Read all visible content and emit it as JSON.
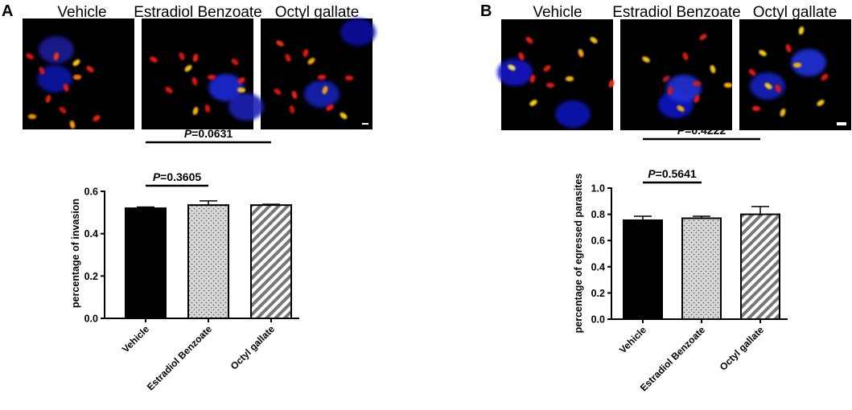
{
  "panels": [
    {
      "letter": "A",
      "micro_labels": [
        "Vehicle",
        "Estradiol Benzoate",
        "Octyl gallate"
      ],
      "micrographs": [
        {
          "name": "Vehicle",
          "nuclei": [
            [
              70,
              62,
              "#1a1f9a"
            ],
            [
              68,
              98,
              "#0d13a8"
            ]
          ],
          "parasites": [
            [
              37,
              70,
              "#e01010"
            ],
            [
              52,
              88,
              "#d01812"
            ],
            [
              70,
              70,
              "#e23a12"
            ],
            [
              95,
              78,
              "#f6c511"
            ],
            [
              96,
              96,
              "#f07a10"
            ],
            [
              112,
              86,
              "#e41c14"
            ],
            [
              82,
              109,
              "#e21813"
            ],
            [
              60,
              123,
              "#d8200f"
            ],
            [
              120,
              147,
              "#e62010"
            ],
            [
              40,
              145,
              "#e88d10"
            ],
            [
              78,
              137,
              "#c7140e"
            ],
            [
              90,
              155,
              "#ee9a12"
            ]
          ]
        },
        {
          "name": "Estradiol Benzoate",
          "nuclei": [
            [
              281,
              109,
              "#1f2ad8"
            ],
            [
              306,
              133,
              "#1c22b5"
            ]
          ],
          "parasites": [
            [
              191,
              74,
              "#e31512"
            ],
            [
              226,
              70,
              "#d41512"
            ],
            [
              243,
              72,
              "#e32013"
            ],
            [
              234,
              85,
              "#f1c012"
            ],
            [
              263,
              96,
              "#e01912"
            ],
            [
              210,
              112,
              "#e31611"
            ],
            [
              242,
              101,
              "#d81510"
            ],
            [
              243,
              138,
              "#f0b010"
            ],
            [
              300,
              100,
              "#e11a12"
            ],
            [
              300,
              112,
              "#f5bb12"
            ],
            [
              292,
              77,
              "#d21511"
            ],
            [
              258,
              135,
              "#d41511"
            ]
          ]
        },
        {
          "name": "Octyl gallate",
          "nuclei": [
            [
              400,
              117,
              "#1622b4"
            ],
            [
              445,
              40,
              "#0a10a0"
            ]
          ],
          "parasites": [
            [
              348,
              54,
              "#e23611"
            ],
            [
              358,
              72,
              "#d81612"
            ],
            [
              380,
              66,
              "#e61512"
            ],
            [
              387,
              76,
              "#f4a311"
            ],
            [
              400,
              96,
              "#e21712"
            ],
            [
              345,
              114,
              "#d01210"
            ],
            [
              366,
              118,
              "#e42012"
            ],
            [
              404,
              112,
              "#f0a010"
            ],
            [
              410,
              134,
              "#ed1a12"
            ],
            [
              434,
              97,
              "#e21411"
            ],
            [
              427,
              144,
              "#f1c712"
            ],
            [
              363,
              136,
              "#c3130e"
            ]
          ]
        }
      ],
      "chart_data": {
        "type": "bar",
        "categories": [
          "Vehicle",
          "Estradiol Benzoate",
          "Octyl gallate"
        ],
        "values": [
          0.52,
          0.535,
          0.535
        ],
        "errors": [
          0.006,
          0.02,
          0.004
        ],
        "fill_patterns": [
          "solid-black",
          "light-gray-dots",
          "gray-diagonal-stripes"
        ],
        "title": "",
        "xlabel": "",
        "ylabel": "percentage of invasion",
        "ylim": [
          0.0,
          0.6
        ],
        "yticks": [
          0.0,
          0.2,
          0.4,
          0.6
        ],
        "ytick_labels": [
          "0.0",
          "0.2",
          "0.4",
          "0.6"
        ],
        "significance": [
          {
            "from": "Vehicle",
            "to": "Estradiol Benzoate",
            "p_label": "P",
            "p_value": "=0.3605"
          },
          {
            "from": "Vehicle",
            "to": "Octyl gallate",
            "p_label": "P",
            "p_value": "=0.0631"
          }
        ]
      }
    },
    {
      "letter": "B",
      "micro_labels": [
        "Vehicle",
        "Estradiol Benzoate",
        "Octyl gallate"
      ],
      "micrographs": [
        {
          "name": "Vehicle",
          "nuclei": [
            [
              640,
              90,
              "#1517c8"
            ],
            [
              712,
              142,
              "#1118b9"
            ]
          ],
          "parasites": [
            [
              636,
              84,
              "#f6d85c"
            ],
            [
              648,
              70,
              "#e41e17"
            ],
            [
              662,
              98,
              "#e41a16"
            ],
            [
              680,
              85,
              "#d81a14"
            ],
            [
              708,
              98,
              "#f2b816"
            ],
            [
              738,
              50,
              "#f4c411"
            ],
            [
              722,
              66,
              "#f4a511"
            ],
            [
              760,
              104,
              "#e42a1a"
            ],
            [
              663,
              128,
              "#f5ce14"
            ],
            [
              684,
              106,
              "#d11a13"
            ],
            [
              658,
              50,
              "#e61f16"
            ]
          ]
        },
        {
          "name": "Estradiol Benzoate",
          "nuclei": [
            [
              840,
              130,
              "#0f18c8"
            ],
            [
              850,
              110,
              "#2032d6"
            ]
          ],
          "parasites": [
            [
              803,
              74,
              "#f3be12"
            ],
            [
              852,
              70,
              "#e0170f"
            ],
            [
              833,
              113,
              "#d01214"
            ],
            [
              828,
              98,
              "#b01730"
            ],
            [
              866,
              104,
              "#cc1a18"
            ],
            [
              846,
              135,
              "#f1a010"
            ],
            [
              886,
              86,
              "#f2c212"
            ],
            [
              866,
              123,
              "#e01912"
            ],
            [
              874,
              46,
              "#d12213"
            ],
            [
              905,
              106,
              "#f1b211"
            ]
          ]
        },
        {
          "name": "Octyl gallate",
          "nuclei": [
            [
              1005,
              78,
              "#2130dc"
            ],
            [
              954,
              107,
              "#1720c0"
            ]
          ],
          "parasites": [
            [
              948,
              66,
              "#f5c812"
            ],
            [
              980,
              60,
              "#e51712"
            ],
            [
              996,
              38,
              "#f7cf12"
            ],
            [
              1025,
              96,
              "#e41913"
            ],
            [
              991,
              81,
              "#f4b011"
            ],
            [
              955,
              107,
              "#f2c812"
            ],
            [
              967,
              110,
              "#e11812"
            ],
            [
              973,
              140,
              "#f2b811"
            ],
            [
              1020,
              128,
              "#f1c212"
            ],
            [
              940,
              135,
              "#e71e16"
            ],
            [
              935,
              90,
              "#d91512"
            ]
          ]
        }
      ],
      "chart_data": {
        "type": "bar",
        "categories": [
          "Vehicle",
          "Estradiol Benzoate",
          "Octyl gallate"
        ],
        "values": [
          0.755,
          0.77,
          0.8
        ],
        "errors": [
          0.03,
          0.015,
          0.06
        ],
        "fill_patterns": [
          "solid-black",
          "light-gray-dots",
          "gray-diagonal-stripes"
        ],
        "title": "",
        "xlabel": "",
        "ylabel": "percentage of egressed parasites",
        "ylim": [
          0.0,
          1.0
        ],
        "yticks": [
          0.0,
          0.2,
          0.4,
          0.6,
          0.8,
          1.0
        ],
        "ytick_labels": [
          "0.0",
          "0.2",
          "0.4",
          "0.6",
          "0.8",
          "1.0"
        ],
        "significance": [
          {
            "from": "Vehicle",
            "to": "Estradiol Benzoate",
            "p_label": "P",
            "p_value": "=0.5641"
          },
          {
            "from": "Vehicle",
            "to": "Octyl gallate",
            "p_label": "P",
            "p_value": "=0.4222"
          }
        ]
      }
    }
  ]
}
